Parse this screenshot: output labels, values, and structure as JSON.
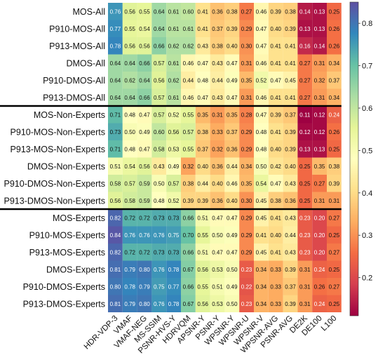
{
  "chart_data": {
    "type": "heatmap",
    "title": "",
    "xlabel": "",
    "ylabel": "",
    "x_labels": [
      "HDR-VDP-3",
      "VMAF",
      "VMAF-NEG",
      "MS-SSIM",
      "PSNR-HVS-Y",
      "HDRVQM",
      "APSNR-Y",
      "PSNR-Y",
      "WPSNR-Y",
      "WPSNR-U",
      "WPSNR-V",
      "WPSNR-AVG",
      "PSNR-AVG",
      "DE2K",
      "DE100",
      "L100"
    ],
    "y_labels": [
      "MOS-All",
      "P910-MOS-All",
      "P913-MOS-All",
      "DMOS-All",
      "P910-DMOS-All",
      "P913-DMOS-All",
      "MOS-Non-Experts",
      "P910-MOS-Non-Experts",
      "P913-MOS-Non-Experts",
      "DMOS-Non-Experts",
      "P910-DMOS-Non-Experts",
      "P913-DMOS-Non-Experts",
      "MOS-Experts",
      "P910-MOS-Experts",
      "P913-MOS-Experts",
      "DMOS-Experts",
      "P910-DMOS-Experts",
      "P913-DMOS-Experts"
    ],
    "values": [
      [
        0.76,
        0.56,
        0.55,
        0.64,
        0.61,
        0.6,
        0.41,
        0.36,
        0.38,
        0.27,
        0.46,
        0.39,
        0.38,
        0.14,
        0.13,
        0.25
      ],
      [
        0.77,
        0.55,
        0.54,
        0.64,
        0.61,
        0.61,
        0.41,
        0.37,
        0.39,
        0.29,
        0.47,
        0.4,
        0.39,
        0.13,
        0.13,
        0.26
      ],
      [
        0.78,
        0.56,
        0.56,
        0.66,
        0.62,
        0.62,
        0.43,
        0.38,
        0.4,
        0.3,
        0.47,
        0.41,
        0.41,
        0.16,
        0.14,
        0.26
      ],
      [
        0.64,
        0.64,
        0.66,
        0.57,
        0.61,
        0.46,
        0.47,
        0.43,
        0.47,
        0.31,
        0.46,
        0.41,
        0.41,
        0.27,
        0.31,
        0.34
      ],
      [
        0.64,
        0.62,
        0.64,
        0.56,
        0.62,
        0.44,
        0.48,
        0.44,
        0.49,
        0.35,
        0.52,
        0.47,
        0.45,
        0.27,
        0.32,
        0.37
      ],
      [
        0.64,
        0.64,
        0.66,
        0.57,
        0.61,
        0.46,
        0.47,
        0.43,
        0.47,
        0.31,
        0.46,
        0.41,
        0.41,
        0.27,
        0.31,
        0.34
      ],
      [
        0.71,
        0.48,
        0.47,
        0.57,
        0.52,
        0.55,
        0.35,
        0.31,
        0.35,
        0.28,
        0.47,
        0.39,
        0.37,
        0.11,
        0.12,
        0.24
      ],
      [
        0.73,
        0.5,
        0.49,
        0.6,
        0.56,
        0.57,
        0.38,
        0.33,
        0.37,
        0.29,
        0.48,
        0.41,
        0.39,
        0.12,
        0.12,
        0.26
      ],
      [
        0.71,
        0.48,
        0.47,
        0.58,
        0.53,
        0.55,
        0.37,
        0.32,
        0.36,
        0.29,
        0.48,
        0.4,
        0.39,
        0.13,
        0.13,
        0.25
      ],
      [
        0.51,
        0.54,
        0.56,
        0.43,
        0.49,
        0.32,
        0.4,
        0.36,
        0.44,
        0.34,
        0.5,
        0.42,
        0.4,
        0.25,
        0.35,
        0.38
      ],
      [
        0.58,
        0.57,
        0.59,
        0.5,
        0.57,
        0.38,
        0.44,
        0.4,
        0.46,
        0.35,
        0.54,
        0.47,
        0.43,
        0.25,
        0.27,
        0.39
      ],
      [
        0.56,
        0.58,
        0.59,
        0.48,
        0.52,
        0.39,
        0.39,
        0.36,
        0.4,
        0.3,
        0.45,
        0.38,
        0.36,
        0.25,
        0.31,
        0.31
      ],
      [
        0.82,
        0.72,
        0.72,
        0.73,
        0.73,
        0.66,
        0.51,
        0.47,
        0.47,
        0.29,
        0.45,
        0.41,
        0.43,
        0.23,
        0.2,
        0.27
      ],
      [
        0.84,
        0.76,
        0.76,
        0.76,
        0.75,
        0.7,
        0.55,
        0.5,
        0.49,
        0.29,
        0.41,
        0.4,
        0.44,
        0.23,
        0.2,
        0.25
      ],
      [
        0.82,
        0.72,
        0.72,
        0.73,
        0.73,
        0.66,
        0.51,
        0.47,
        0.47,
        0.29,
        0.45,
        0.41,
        0.43,
        0.23,
        0.2,
        0.27
      ],
      [
        0.81,
        0.79,
        0.8,
        0.76,
        0.78,
        0.67,
        0.56,
        0.53,
        0.5,
        0.23,
        0.34,
        0.33,
        0.39,
        0.31,
        0.24,
        0.25
      ],
      [
        0.8,
        0.78,
        0.79,
        0.75,
        0.77,
        0.66,
        0.55,
        0.51,
        0.49,
        0.22,
        0.34,
        0.33,
        0.37,
        0.31,
        0.26,
        0.27
      ],
      [
        0.81,
        0.79,
        0.8,
        0.76,
        0.78,
        0.67,
        0.56,
        0.53,
        0.5,
        0.23,
        0.34,
        0.33,
        0.39,
        0.31,
        0.24,
        0.25
      ]
    ],
    "group_separators_after_rows": [
      5,
      11
    ],
    "colorbar": {
      "ticks": [
        0.2,
        0.3,
        0.4,
        0.5,
        0.6,
        0.7,
        0.8
      ],
      "tick_labels": [
        "0.2",
        "0.3",
        "0.4",
        "0.5",
        "0.6",
        "0.7",
        "0.8"
      ],
      "vmin": 0.11,
      "vmax": 0.85,
      "colormap": "Spectral"
    },
    "colors": {
      "low": "#9e0142",
      "mid": "#ffffbf",
      "high": "#5e4fa2"
    }
  }
}
